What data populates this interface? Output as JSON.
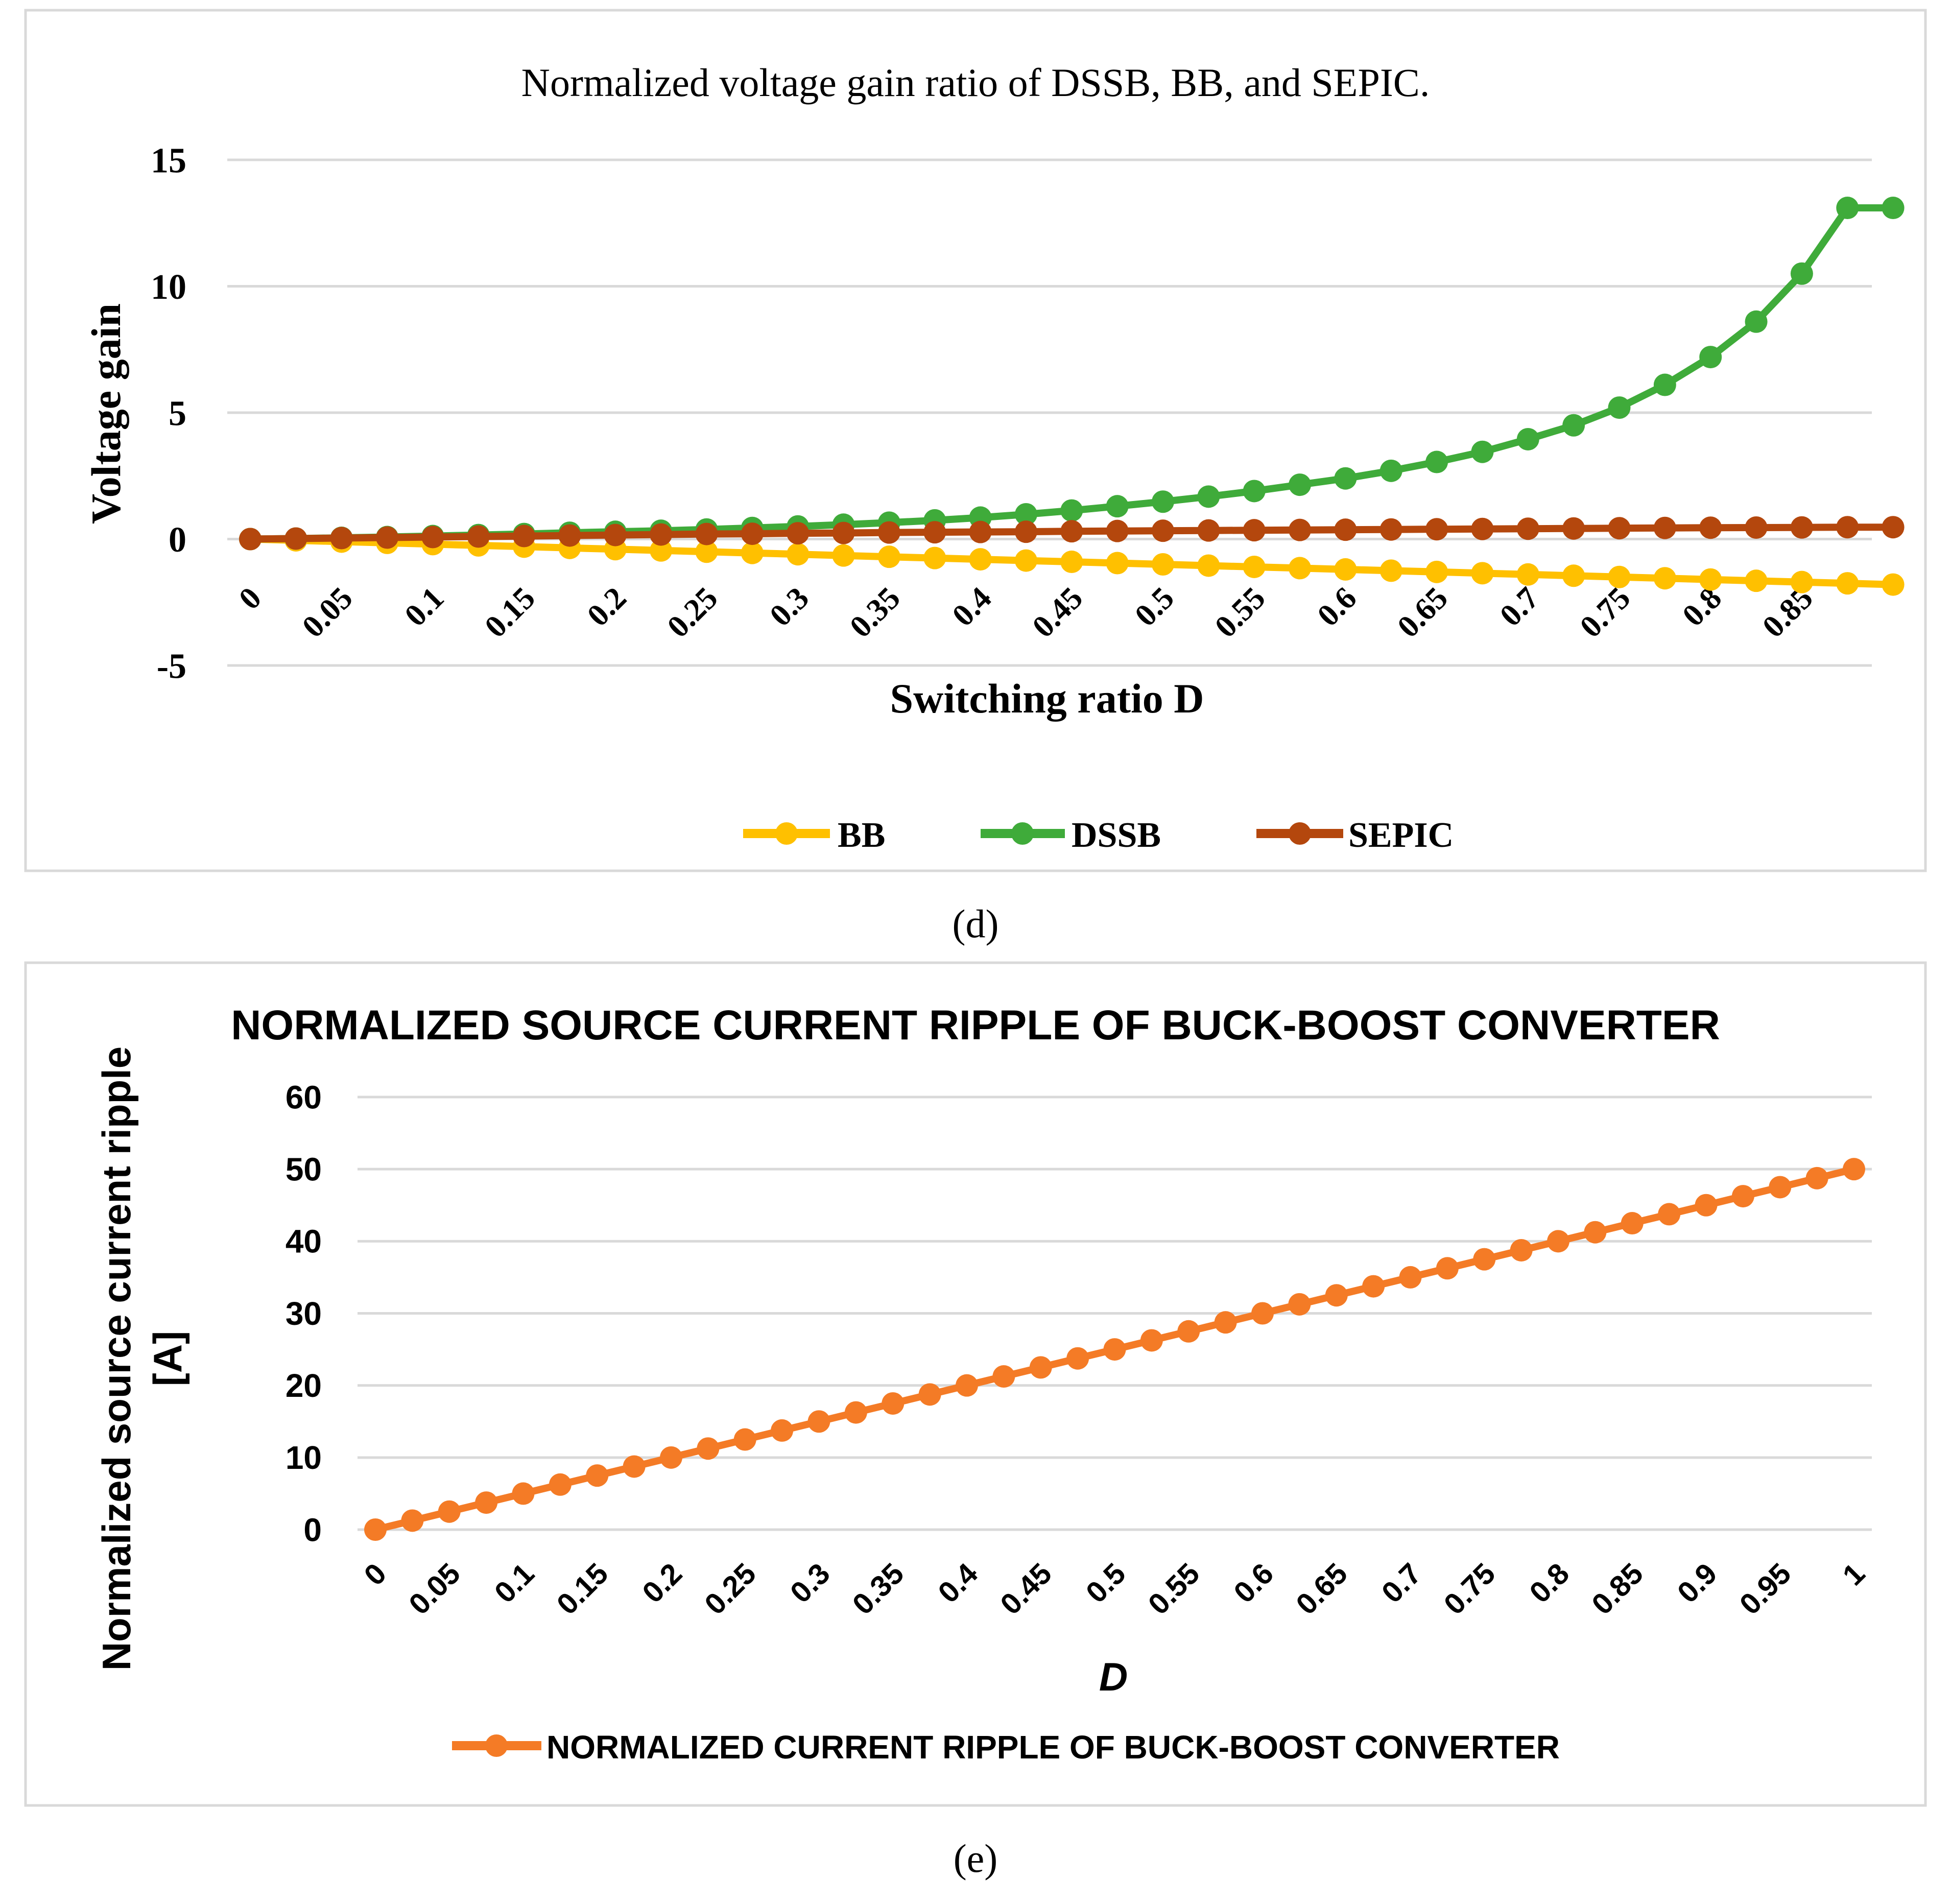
{
  "chart_data": [
    {
      "type": "line",
      "panel_label": "(d)",
      "title": "Normalized voltage gain ratio of DSSB, BB, and SEPIC.",
      "xlabel": "Switching ratio D",
      "ylabel": "Voltage gain",
      "ylim": [
        -5,
        15
      ],
      "yticks": [
        "15",
        "10",
        "5",
        "0",
        "-5"
      ],
      "ytick_values": [
        15,
        10,
        5,
        0,
        -5
      ],
      "x_tick_labels": [
        "0",
        "0.05",
        "0.1",
        "0.15",
        "0.2",
        "0.25",
        "0.3",
        "0.35",
        "0.4",
        "0.45",
        "0.5",
        "0.55",
        "0.6",
        "0.65",
        "0.7",
        "0.75",
        "0.8",
        "0.85"
      ],
      "x": [
        0,
        0.025,
        0.05,
        0.075,
        0.1,
        0.125,
        0.15,
        0.175,
        0.2,
        0.225,
        0.25,
        0.275,
        0.3,
        0.325,
        0.35,
        0.375,
        0.4,
        0.425,
        0.45,
        0.475,
        0.5,
        0.525,
        0.55,
        0.575,
        0.6,
        0.625,
        0.65,
        0.675,
        0.7,
        0.725,
        0.75,
        0.775,
        0.8,
        0.825,
        0.85,
        0.875,
        0.9
      ],
      "grid": true,
      "legend_position": "bottom",
      "series": [
        {
          "name": "BB",
          "color": "#ffc000",
          "values": [
            0,
            -0.05,
            -0.1,
            -0.15,
            -0.2,
            -0.25,
            -0.3,
            -0.35,
            -0.4,
            -0.45,
            -0.5,
            -0.55,
            -0.6,
            -0.65,
            -0.7,
            -0.75,
            -0.8,
            -0.85,
            -0.9,
            -0.95,
            -1.0,
            -1.05,
            -1.1,
            -1.15,
            -1.2,
            -1.25,
            -1.3,
            -1.35,
            -1.4,
            -1.45,
            -1.5,
            -1.55,
            -1.6,
            -1.65,
            -1.7,
            -1.75,
            -1.8
          ]
        },
        {
          "name": "DSSB",
          "color": "#3fab3a",
          "values": [
            0,
            0.02,
            0.05,
            0.08,
            0.12,
            0.16,
            0.2,
            0.25,
            0.29,
            0.33,
            0.38,
            0.44,
            0.5,
            0.57,
            0.65,
            0.74,
            0.85,
            0.98,
            1.13,
            1.3,
            1.48,
            1.68,
            1.9,
            2.15,
            2.4,
            2.7,
            3.05,
            3.45,
            3.95,
            4.5,
            5.2,
            6.1,
            7.2,
            8.6,
            10.5,
            13.1,
            13.1
          ]
        },
        {
          "name": "SEPIC",
          "color": "#b4470d",
          "values": [
            0,
            0.02,
            0.04,
            0.06,
            0.08,
            0.1,
            0.12,
            0.14,
            0.16,
            0.18,
            0.2,
            0.21,
            0.23,
            0.24,
            0.26,
            0.27,
            0.28,
            0.29,
            0.31,
            0.32,
            0.33,
            0.34,
            0.35,
            0.36,
            0.37,
            0.38,
            0.39,
            0.4,
            0.41,
            0.42,
            0.43,
            0.44,
            0.45,
            0.455,
            0.46,
            0.47,
            0.47
          ]
        }
      ]
    },
    {
      "type": "line",
      "panel_label": "(e)",
      "title": "NORMALIZED SOURCE CURRENT RIPPLE OF BUCK-BOOST CONVERTER",
      "xlabel": "D",
      "ylabel_lines": [
        "Normalized source current ripple",
        "[A]"
      ],
      "ylim": [
        0,
        60
      ],
      "yticks": [
        "60",
        "50",
        "40",
        "30",
        "20",
        "10",
        "0"
      ],
      "ytick_values": [
        60,
        50,
        40,
        30,
        20,
        10,
        0
      ],
      "x_tick_labels": [
        "0",
        "0.05",
        "0.1",
        "0.15",
        "0.2",
        "0.25",
        "0.3",
        "0.35",
        "0.4",
        "0.45",
        "0.5",
        "0.55",
        "0.6",
        "0.65",
        "0.7",
        "0.75",
        "0.8",
        "0.85",
        "0.9",
        "0.95",
        "1"
      ],
      "x": [
        0,
        0.025,
        0.05,
        0.075,
        0.1,
        0.125,
        0.15,
        0.175,
        0.2,
        0.225,
        0.25,
        0.275,
        0.3,
        0.325,
        0.35,
        0.375,
        0.4,
        0.425,
        0.45,
        0.475,
        0.5,
        0.525,
        0.55,
        0.575,
        0.6,
        0.625,
        0.65,
        0.675,
        0.7,
        0.725,
        0.75,
        0.775,
        0.8,
        0.825,
        0.85,
        0.875,
        0.9,
        0.925,
        0.95,
        0.975,
        1.0
      ],
      "grid": true,
      "legend_position": "bottom",
      "series": [
        {
          "name": "NORMALIZED CURRENT RIPPLE OF BUCK-BOOST CONVERTER",
          "color": "#f47b26",
          "values": [
            0,
            1.25,
            2.5,
            3.75,
            5,
            6.25,
            7.5,
            8.75,
            10,
            11.25,
            12.5,
            13.75,
            15,
            16.25,
            17.5,
            18.75,
            20,
            21.25,
            22.5,
            23.75,
            25,
            26.25,
            27.5,
            28.75,
            30,
            31.25,
            32.5,
            33.75,
            35,
            36.25,
            37.5,
            38.75,
            40,
            41.25,
            42.5,
            43.75,
            45,
            46.25,
            47.5,
            48.75,
            50
          ]
        }
      ]
    }
  ]
}
